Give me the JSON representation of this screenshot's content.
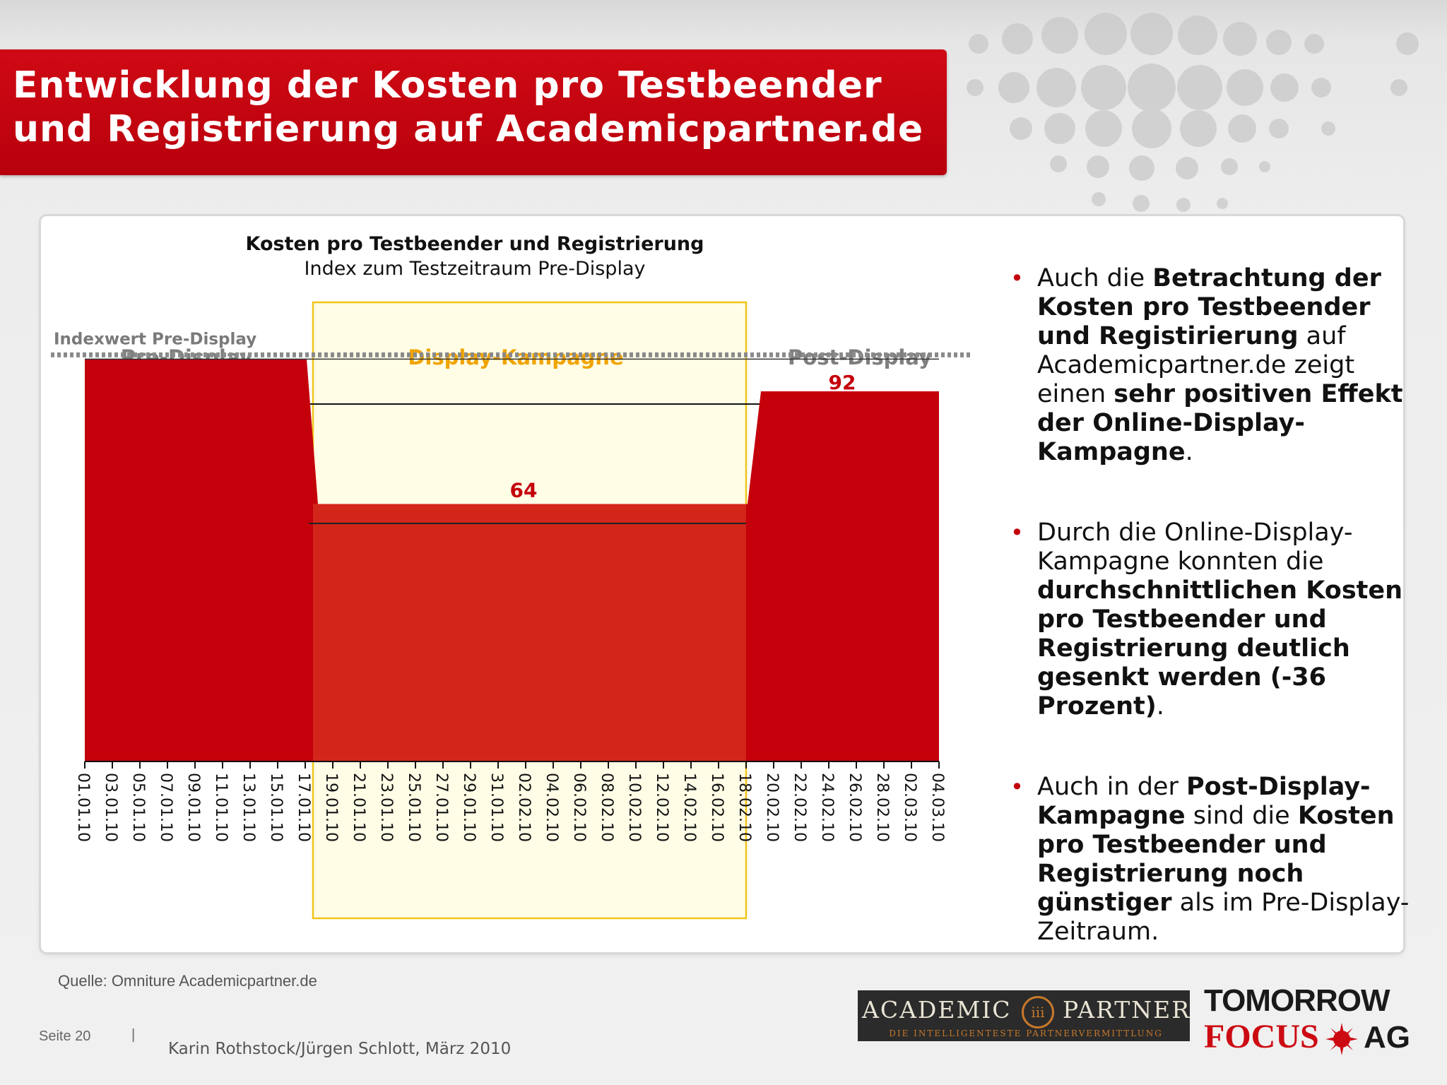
{
  "header": {
    "title": "Entwicklung der Kosten pro Testbeender und Registrierung auf Academicpartner.de"
  },
  "colors": {
    "brand_red": "#c4000b",
    "campaign_red": "#d2261b",
    "campaign_yellow": "#f0c419",
    "campaign_label": "#f0a400"
  },
  "chart_data": {
    "type": "area",
    "title": "Kosten pro Testbeender und Registrierung",
    "subtitle": "Index zum Testzeitraum Pre-Display",
    "periods": [
      {
        "name": "Pre-Display",
        "from": "01.01.10",
        "to": "17.01.10",
        "value": 100
      },
      {
        "name": "Display-Kampagne",
        "from": "19.01.10",
        "to": "18.02.10",
        "value": 64
      },
      {
        "name": "Post-Display",
        "from": "20.02.10",
        "to": "04.03.10",
        "value": 92
      }
    ],
    "reference_line": {
      "label": "Indexwert Pre-Display",
      "value": 100
    },
    "data_labels": [
      "64",
      "92"
    ],
    "x_ticks": [
      "01.01.10",
      "03.01.10",
      "05.01.10",
      "07.01.10",
      "09.01.10",
      "11.01.10",
      "13.01.10",
      "15.01.10",
      "17.01.10",
      "19.01.10",
      "21.01.10",
      "23.01.10",
      "25.01.10",
      "27.01.10",
      "29.01.10",
      "31.01.10",
      "02.02.10",
      "04.02.10",
      "06.02.10",
      "08.02.10",
      "10.02.10",
      "12.02.10",
      "14.02.10",
      "16.02.10",
      "18.02.10",
      "20.02.10",
      "22.02.10",
      "24.02.10",
      "26.02.10",
      "28.02.10",
      "02.03.10",
      "04.03.10"
    ],
    "ylim": [
      0,
      115
    ],
    "grid": false
  },
  "bullets": [
    [
      {
        "text": "Auch die ",
        "bold": false
      },
      {
        "text": "Betrachtung der Kosten pro Testbeender und Registirierung",
        "bold": true
      },
      {
        "text": " auf Academicpartner.de zeigt einen ",
        "bold": false
      },
      {
        "text": "sehr positiven Effekt der Online-Display-Kampagne",
        "bold": true
      },
      {
        "text": ".",
        "bold": false
      }
    ],
    [
      {
        "text": "Durch die Online-Display-Kampagne konnten die ",
        "bold": false
      },
      {
        "text": "durchschnittlichen Kosten pro Testbeender und Registrierung deutlich gesenkt werden (-36 Prozent)",
        "bold": true
      },
      {
        "text": ".",
        "bold": false
      }
    ],
    [
      {
        "text": "Auch in der ",
        "bold": false
      },
      {
        "text": "Post-Display-Kampagne",
        "bold": true
      },
      {
        "text": " sind die ",
        "bold": false
      },
      {
        "text": "Kosten pro Testbeender und Registrierung noch günstiger",
        "bold": true
      },
      {
        "text": " als im Pre-Display-Zeitraum.",
        "bold": false
      }
    ]
  ],
  "bullet_marker": "•",
  "footer": {
    "source": "Quelle: Omniture Academicpartner.de",
    "page": "Seite 20",
    "separator": "|",
    "author": "Karin Rothstock/Jürgen Schlott, März 2010"
  },
  "logos": {
    "academic_left": "ACADEMIC",
    "academic_right": "PARTNER",
    "academic_emblem": "ⅲ",
    "academic_tagline": "DIE INTELLIGENTESTE PARTNERVERMITTLUNG",
    "tf_top": "TOMORROW",
    "tf_bottom": "FOCUS",
    "tf_ag": "AG"
  }
}
